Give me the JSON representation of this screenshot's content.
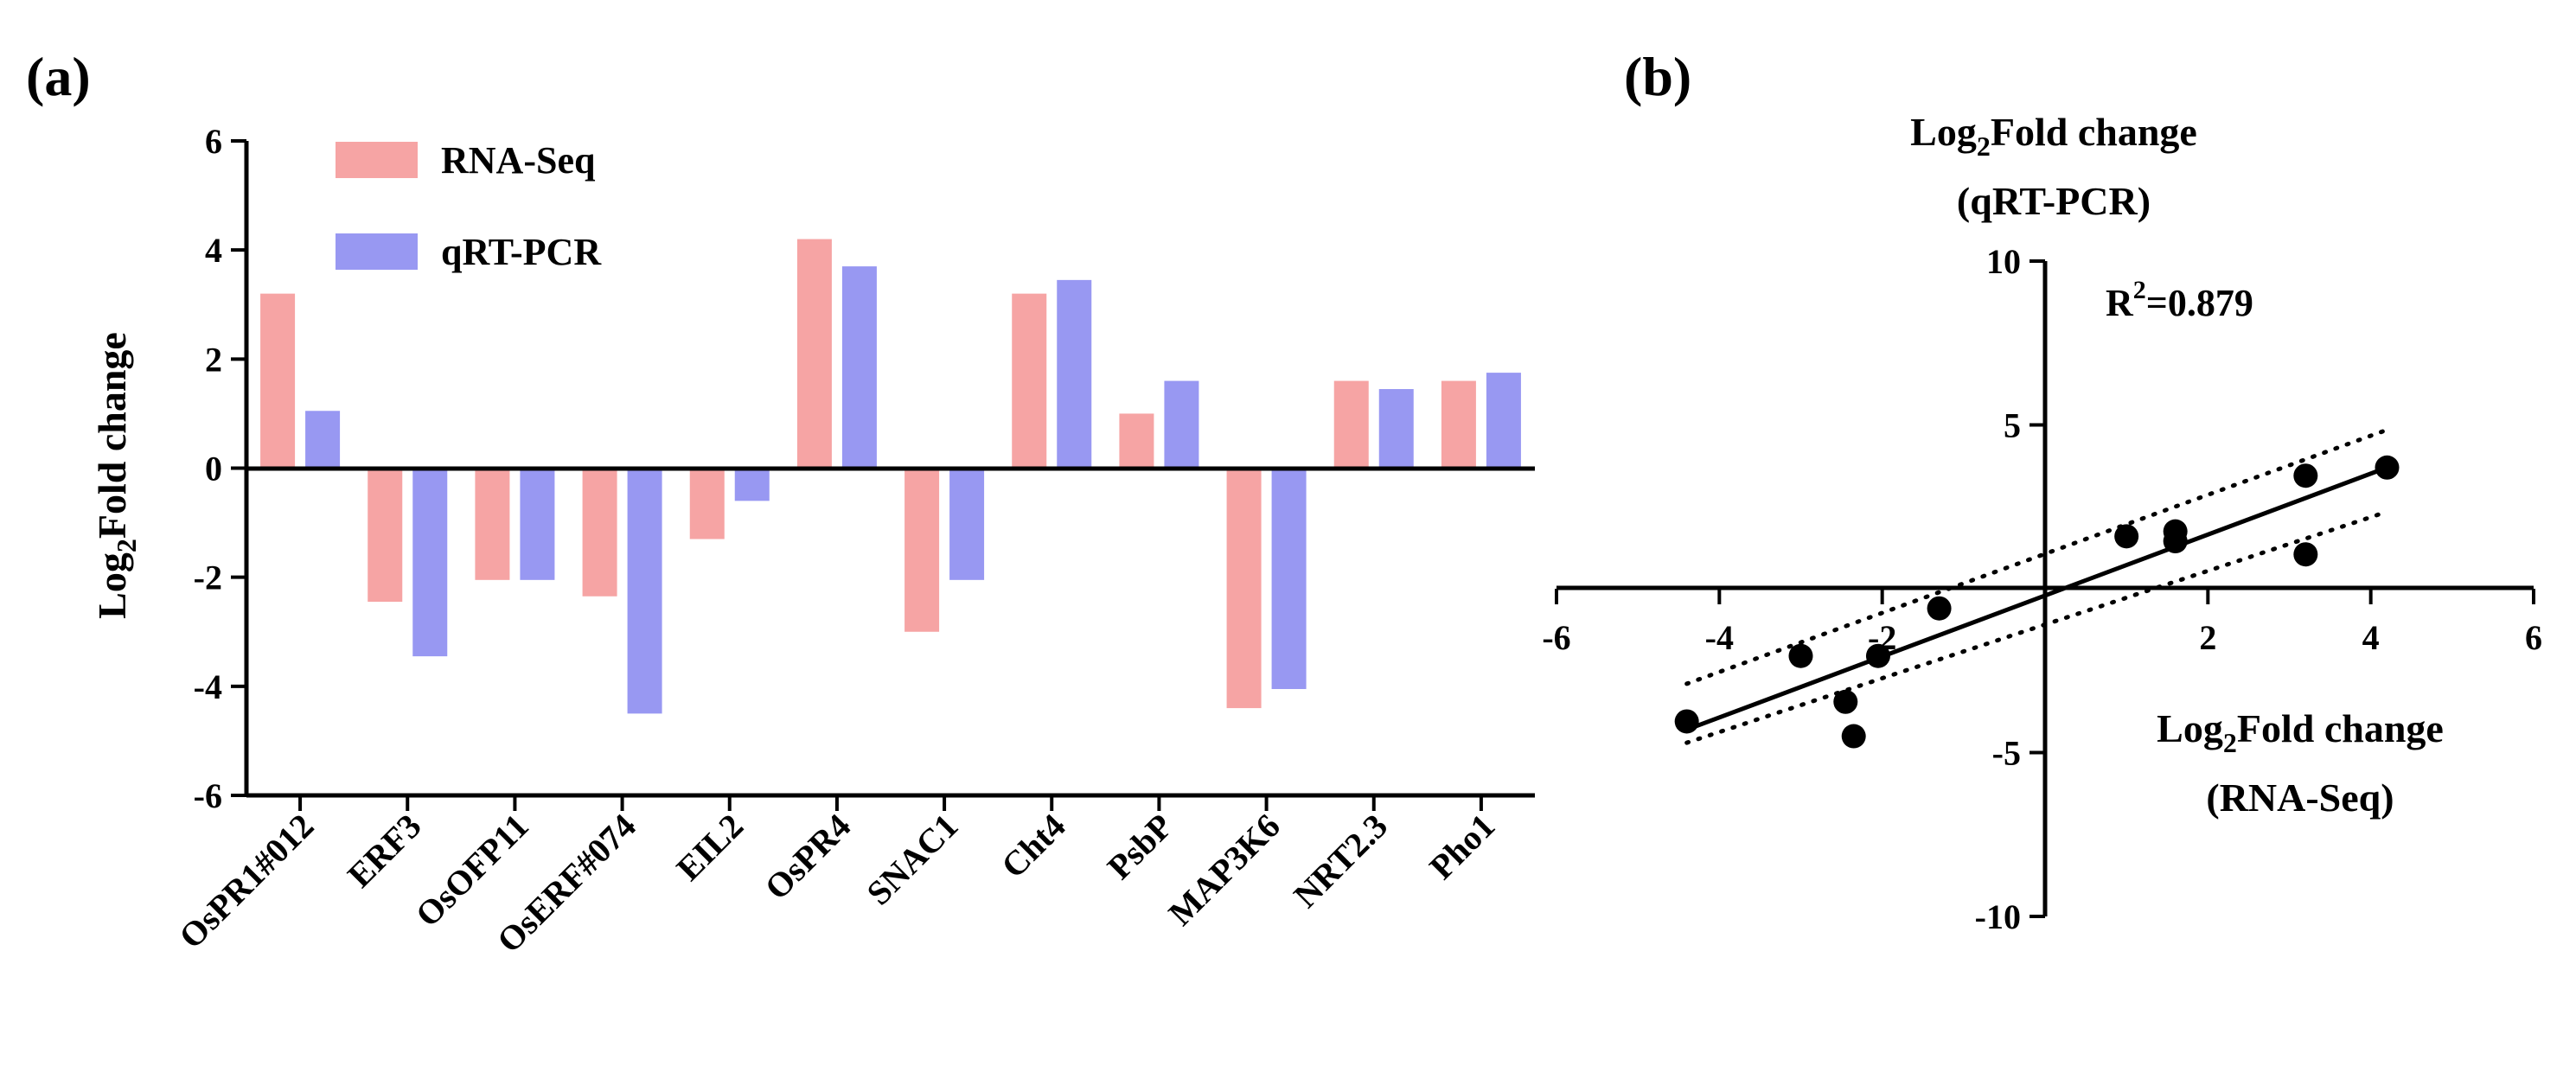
{
  "chart_data": [
    {
      "panel": "(a)",
      "type": "bar",
      "categories": [
        "OsPR1#012",
        "ERF3",
        "OsOFP11",
        "OsERF#074",
        "EIL2",
        "OsPR4",
        "SNAC1",
        "Cht4",
        "PsbP",
        "MAP3K6",
        "NRT2.3",
        "Pho1"
      ],
      "series": [
        {
          "name": "RNA-Seq",
          "color": "#f6a4a4",
          "values": [
            3.2,
            -2.45,
            -2.05,
            -2.35,
            -1.3,
            4.2,
            -3.0,
            3.2,
            1.0,
            -4.4,
            1.6,
            1.6
          ]
        },
        {
          "name": "qRT-PCR",
          "color": "#9898f2",
          "values": [
            1.05,
            -3.45,
            -2.05,
            -4.5,
            -0.6,
            3.7,
            -2.05,
            3.45,
            1.6,
            -4.05,
            1.45,
            1.75
          ]
        }
      ],
      "ylabel_main": "Log",
      "ylabel_sub": "2",
      "ylabel_rest": "Fold change",
      "ylim": [
        -6,
        6
      ],
      "yticks": [
        "6",
        "4",
        "2",
        "0",
        "-2",
        "-4",
        "-6"
      ],
      "legend_position": "top-left"
    },
    {
      "panel": "(b)",
      "type": "scatter",
      "points": [
        {
          "x": -4.4,
          "y": -4.05
        },
        {
          "x": -3.0,
          "y": -2.05
        },
        {
          "x": -2.45,
          "y": -3.45
        },
        {
          "x": -2.35,
          "y": -4.5
        },
        {
          "x": -2.05,
          "y": -2.05
        },
        {
          "x": -1.3,
          "y": -0.6
        },
        {
          "x": 1.0,
          "y": 1.6
        },
        {
          "x": 1.6,
          "y": 1.45
        },
        {
          "x": 1.6,
          "y": 1.75
        },
        {
          "x": 3.2,
          "y": 1.05
        },
        {
          "x": 3.2,
          "y": 3.45
        },
        {
          "x": 4.2,
          "y": 3.7
        }
      ],
      "fit_line": {
        "x": [
          -4.4,
          4.2
        ],
        "y": [
          -4.3,
          3.7
        ]
      },
      "ci_upper": {
        "x": [
          -4.4,
          4.2
        ],
        "y": [
          -2.9,
          4.85
        ]
      },
      "ci_lower": {
        "x": [
          -4.4,
          4.2
        ],
        "y": [
          -4.7,
          2.35
        ]
      },
      "r2_label": "R",
      "r2_sup": "2",
      "r2_value": "=0.879",
      "xlim": [
        -6,
        6
      ],
      "ylim": [
        -10,
        10
      ],
      "xticks": [
        "-6",
        "-4",
        "-2",
        "2",
        "4",
        "6"
      ],
      "yticks": [
        "10",
        "5",
        "-5",
        "-10"
      ],
      "ylabel_line1_main": "Log",
      "ylabel_line1_sub": "2",
      "ylabel_line1_rest": "Fold change",
      "ylabel_line2": "(qRT-PCR)",
      "xlabel_line1_main": "Log",
      "xlabel_line1_sub": "2",
      "xlabel_line1_rest": "Fold change",
      "xlabel_line2": "(RNA-Seq)"
    }
  ]
}
